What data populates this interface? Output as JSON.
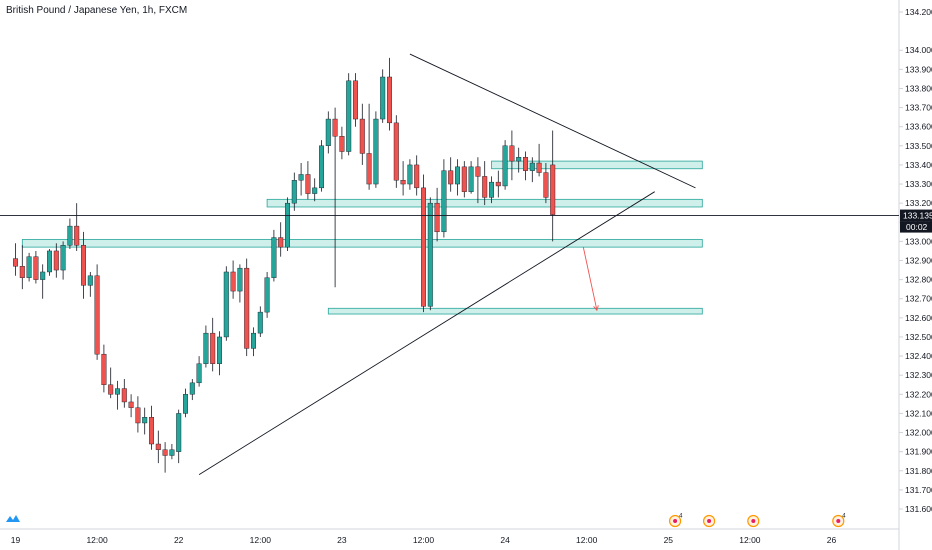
{
  "header": {
    "title": "British Pound / Japanese Yen, 1h, FXCM"
  },
  "colors": {
    "up": "#26a69a",
    "down": "#ef5350",
    "zone_fill": "#bfeae4",
    "zone_stroke": "#26a69a",
    "line": "#131722",
    "arrow": "#ef5350",
    "grid": "#e0e3eb"
  },
  "icons": {
    "logo": "tradingview-logo-icon",
    "events": "economic-event-icon"
  },
  "chart_data": {
    "type": "candlestick",
    "title": "British Pound / Japanese Yen, 1h, FXCM",
    "ylim": [
      131.6,
      134.2
    ],
    "y_ticks": [
      "134.200",
      "134.000",
      "133.900",
      "133.800",
      "133.700",
      "133.600",
      "133.500",
      "133.400",
      "133.300",
      "133.200",
      "133.100",
      "133.000",
      "132.900",
      "132.800",
      "132.700",
      "132.600",
      "132.500",
      "132.400",
      "132.300",
      "132.200",
      "132.100",
      "132.000",
      "131.900",
      "131.800",
      "131.700",
      "131.600"
    ],
    "x_ticks": [
      {
        "label": "19",
        "bar": 0
      },
      {
        "label": "12:00",
        "bar": 12
      },
      {
        "label": "22",
        "bar": 24
      },
      {
        "label": "12:00",
        "bar": 36
      },
      {
        "label": "23",
        "bar": 48
      },
      {
        "label": "12:00",
        "bar": 60
      },
      {
        "label": "24",
        "bar": 72
      },
      {
        "label": "12:00",
        "bar": 84
      },
      {
        "label": "25",
        "bar": 96
      },
      {
        "label": "12:00",
        "bar": 108
      },
      {
        "label": "26",
        "bar": 120
      }
    ],
    "current_price": {
      "price": 133.135,
      "label": "133.135",
      "countdown": "00:02"
    },
    "candles": [
      [
        132.91,
        132.99,
        132.82,
        132.87
      ],
      [
        132.87,
        132.98,
        132.75,
        132.81
      ],
      [
        132.81,
        132.94,
        132.79,
        132.92
      ],
      [
        132.92,
        132.95,
        132.78,
        132.8
      ],
      [
        132.8,
        132.88,
        132.7,
        132.84
      ],
      [
        132.84,
        132.96,
        132.82,
        132.95
      ],
      [
        132.95,
        132.99,
        132.81,
        132.85
      ],
      [
        132.85,
        133.0,
        132.8,
        132.98
      ],
      [
        132.98,
        133.12,
        132.96,
        133.08
      ],
      [
        133.08,
        133.2,
        132.95,
        132.98
      ],
      [
        132.98,
        133.05,
        132.7,
        132.77
      ],
      [
        132.77,
        132.84,
        132.71,
        132.82
      ],
      [
        132.82,
        132.88,
        132.38,
        132.41
      ],
      [
        132.41,
        132.46,
        132.21,
        132.25
      ],
      [
        132.25,
        132.34,
        132.18,
        132.2
      ],
      [
        132.2,
        132.27,
        132.12,
        132.23
      ],
      [
        132.23,
        132.28,
        132.13,
        132.16
      ],
      [
        132.16,
        132.2,
        132.08,
        132.13
      ],
      [
        132.13,
        132.19,
        132.0,
        132.05
      ],
      [
        132.05,
        132.13,
        131.99,
        132.08
      ],
      [
        132.08,
        132.14,
        131.91,
        131.94
      ],
      [
        131.94,
        132.01,
        131.84,
        131.91
      ],
      [
        131.91,
        131.95,
        131.79,
        131.88
      ],
      [
        131.88,
        131.94,
        131.86,
        131.91
      ],
      [
        131.9,
        132.12,
        131.84,
        132.1
      ],
      [
        132.1,
        132.23,
        132.08,
        132.2
      ],
      [
        132.2,
        132.28,
        132.17,
        132.26
      ],
      [
        132.26,
        132.4,
        132.24,
        132.36
      ],
      [
        132.36,
        132.56,
        132.34,
        132.52
      ],
      [
        132.52,
        132.6,
        132.32,
        132.36
      ],
      [
        132.36,
        132.53,
        132.3,
        132.5
      ],
      [
        132.5,
        132.87,
        132.48,
        132.84
      ],
      [
        132.84,
        132.9,
        132.7,
        132.74
      ],
      [
        132.74,
        132.88,
        132.68,
        132.86
      ],
      [
        132.86,
        132.91,
        132.4,
        132.44
      ],
      [
        132.44,
        132.55,
        132.4,
        132.52
      ],
      [
        132.52,
        132.66,
        132.5,
        132.63
      ],
      [
        132.63,
        132.84,
        132.6,
        132.81
      ],
      [
        132.81,
        133.06,
        132.79,
        133.02
      ],
      [
        133.02,
        133.1,
        132.92,
        132.97
      ],
      [
        132.97,
        133.23,
        132.95,
        133.2
      ],
      [
        133.2,
        133.36,
        133.16,
        133.32
      ],
      [
        133.32,
        133.41,
        133.24,
        133.35
      ],
      [
        133.35,
        133.42,
        133.22,
        133.25
      ],
      [
        133.25,
        133.33,
        133.21,
        133.28
      ],
      [
        133.28,
        133.53,
        133.26,
        133.5
      ],
      [
        133.5,
        133.68,
        133.46,
        133.64
      ],
      [
        133.64,
        133.7,
        132.76,
        133.55
      ],
      [
        133.55,
        133.6,
        133.43,
        133.47
      ],
      [
        133.47,
        133.88,
        133.45,
        133.84
      ],
      [
        133.84,
        133.88,
        133.6,
        133.64
      ],
      [
        133.64,
        133.72,
        133.4,
        133.46
      ],
      [
        133.46,
        133.72,
        133.27,
        133.3
      ],
      [
        133.3,
        133.68,
        133.28,
        133.64
      ],
      [
        133.64,
        133.9,
        133.62,
        133.86
      ],
      [
        133.86,
        133.96,
        133.58,
        133.62
      ],
      [
        133.62,
        133.66,
        133.28,
        133.32
      ],
      [
        133.32,
        133.42,
        133.24,
        133.3
      ],
      [
        133.3,
        133.43,
        133.27,
        133.4
      ],
      [
        133.4,
        133.45,
        133.24,
        133.28
      ],
      [
        133.28,
        133.35,
        132.63,
        132.66
      ],
      [
        132.66,
        133.23,
        132.64,
        133.2
      ],
      [
        133.2,
        133.28,
        133.0,
        133.05
      ],
      [
        133.05,
        133.43,
        133.02,
        133.37
      ],
      [
        133.37,
        133.44,
        133.26,
        133.3
      ],
      [
        133.3,
        133.43,
        133.24,
        133.39
      ],
      [
        133.39,
        133.42,
        133.23,
        133.26
      ],
      [
        133.26,
        133.42,
        133.25,
        133.39
      ],
      [
        133.39,
        133.44,
        133.2,
        133.34
      ],
      [
        133.34,
        133.42,
        133.19,
        133.23
      ],
      [
        133.23,
        133.34,
        133.2,
        133.31
      ],
      [
        133.31,
        133.37,
        133.23,
        133.29
      ],
      [
        133.29,
        133.53,
        133.27,
        133.5
      ],
      [
        133.5,
        133.58,
        133.32,
        133.42
      ],
      [
        133.42,
        133.49,
        133.36,
        133.44
      ],
      [
        133.44,
        133.47,
        133.32,
        133.37
      ],
      [
        133.37,
        133.44,
        133.31,
        133.41
      ],
      [
        133.41,
        133.51,
        133.34,
        133.36
      ],
      [
        133.36,
        133.41,
        133.2,
        133.23
      ],
      [
        133.4,
        133.58,
        133.0,
        133.14
      ]
    ],
    "zones": [
      {
        "y0": 133.38,
        "y1": 133.42,
        "x0": 70,
        "x1": 101
      },
      {
        "y0": 133.18,
        "y1": 133.22,
        "x0": 37,
        "x1": 101
      },
      {
        "y0": 132.97,
        "y1": 133.01,
        "x0": 1,
        "x1": 101
      },
      {
        "y0": 132.62,
        "y1": 132.65,
        "x0": 46,
        "x1": 101
      }
    ],
    "trendlines": [
      {
        "x0": 27,
        "y0": 131.78,
        "x1": 94,
        "y1": 133.26
      },
      {
        "x0": 58,
        "y0": 133.98,
        "x1": 100,
        "y1": 133.28
      }
    ],
    "arrow": {
      "x0": 83.5,
      "y0": 132.97,
      "x1": 85.5,
      "y1": 132.64
    },
    "event_icons": [
      {
        "bar": 97,
        "count": "4"
      },
      {
        "bar": 102,
        "count": ""
      },
      {
        "bar": 108.5,
        "count": ""
      },
      {
        "bar": 121,
        "count": "4"
      }
    ]
  }
}
